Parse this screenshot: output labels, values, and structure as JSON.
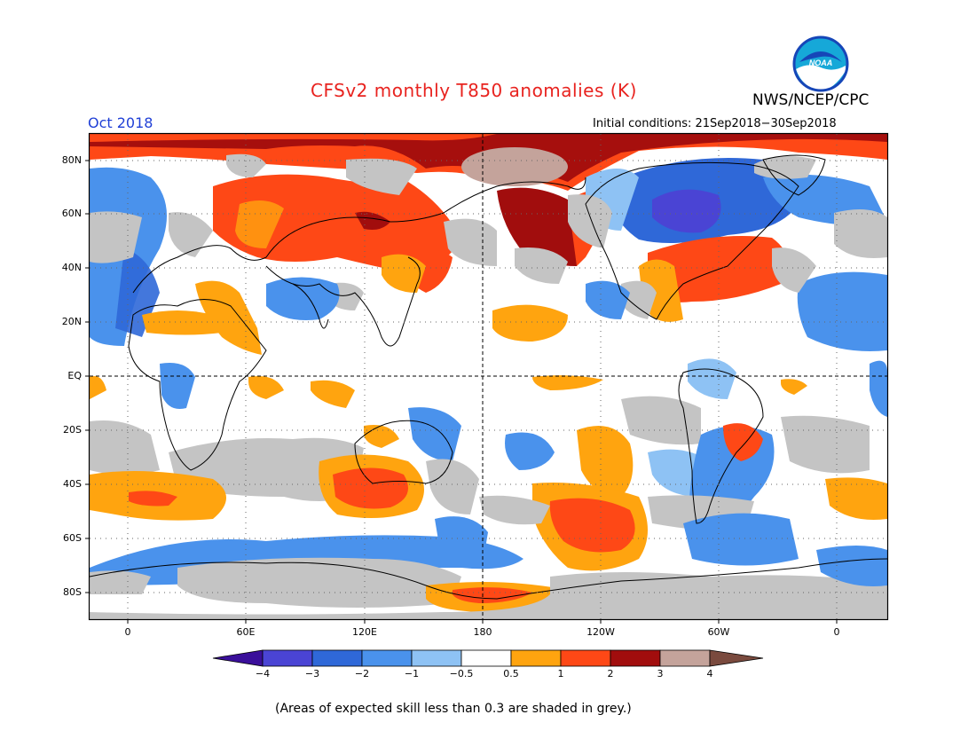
{
  "header": {
    "title": "CFSv2 monthly T850 anomalies (K)",
    "agency": "NWS/NCEP/CPC",
    "month": "Oct 2018",
    "initial_conditions": "Initial conditions: 21Sep2018−30Sep2018",
    "logo_text": "NOAA"
  },
  "map": {
    "lat_labels": [
      "80N",
      "60N",
      "40N",
      "20N",
      "EQ",
      "20S",
      "40S",
      "60S",
      "80S"
    ],
    "lon_labels": [
      "0",
      "60E",
      "120E",
      "180",
      "120W",
      "60W",
      "0"
    ],
    "projection": "cylindrical, centered on 180"
  },
  "colorbar": {
    "labels": [
      "−4",
      "−3",
      "−2",
      "−1",
      "−0.5",
      "0.5",
      "1",
      "2",
      "3",
      "4"
    ],
    "colors": [
      "#3a1fa8",
      "#4a44d4",
      "#2f68d8",
      "#4a92ec",
      "#8ec2f4",
      "#ffffff",
      "#ffa40f",
      "#fe4816",
      "#a10d0d",
      "#c4a39b"
    ],
    "end_low": "#3a0f9a",
    "end_high": "#7a4a3e"
  },
  "caption": "(Areas of expected skill less than 0.3 are shaded in grey.)",
  "colors": {
    "grey_low_skill": "#c4c4c4",
    "title_red": "#e8231f",
    "month_blue": "#1f3fd6"
  }
}
